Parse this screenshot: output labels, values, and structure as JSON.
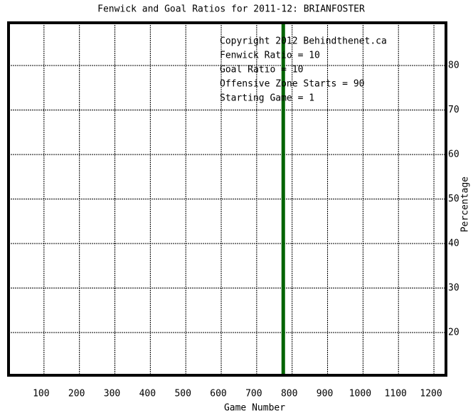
{
  "chart_data": {
    "type": "line",
    "title": "Fenwick and Goal Ratios for 2011-12: BRIANFOSTER",
    "x_label": "Game Number",
    "y_label": "Percentage",
    "xlim": [
      0,
      1234
    ],
    "xticks": [
      100,
      200,
      300,
      400,
      500,
      600,
      700,
      800,
      900,
      1000,
      1100,
      1200
    ],
    "ylim": [
      10.4,
      89.6
    ],
    "yticks": [
      20,
      30,
      40,
      50,
      60,
      70,
      80
    ],
    "grid": true,
    "vline": {
      "x": 775,
      "color": "#006400"
    },
    "annotations": [
      {
        "text": "Copyright 2012 Behindthenet.ca",
        "color": "#000000"
      },
      {
        "text": "Fenwick Ratio = 10",
        "color": "#000080"
      },
      {
        "text": "Goal Ratio = 10",
        "color": "#8b5a2b"
      },
      {
        "text": "Offensive Zone Starts = 90",
        "color": "#006400"
      },
      {
        "text": "Starting Game = 1",
        "color": "#000000"
      }
    ]
  }
}
